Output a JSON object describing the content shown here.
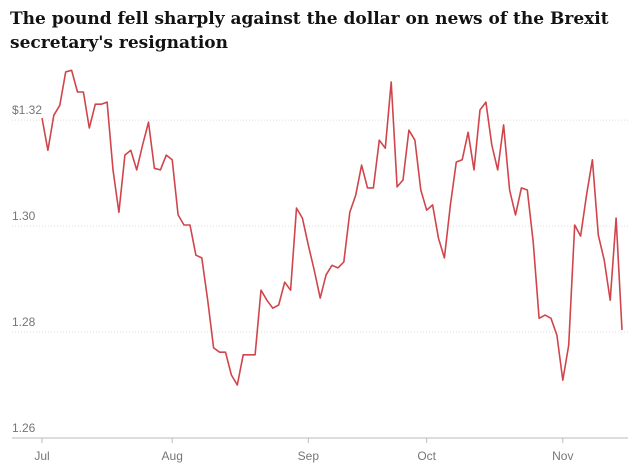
{
  "chart_data": {
    "type": "line",
    "title": [
      "The pound fell sharply against the dollar on news of the Brexit",
      "secretary's resignation"
    ],
    "categories": [
      "Jul",
      null,
      null,
      null,
      null,
      null,
      null,
      null,
      null,
      null,
      null,
      null,
      null,
      null,
      null,
      null,
      null,
      null,
      null,
      null,
      null,
      null,
      "Aug",
      null,
      null,
      null,
      null,
      null,
      null,
      null,
      null,
      null,
      null,
      null,
      null,
      null,
      null,
      null,
      null,
      null,
      null,
      null,
      null,
      null,
      null,
      "Sep",
      null,
      null,
      null,
      null,
      null,
      null,
      null,
      null,
      null,
      null,
      null,
      null,
      null,
      null,
      null,
      null,
      null,
      null,
      null,
      "Oct",
      null,
      null,
      null,
      null,
      null,
      null,
      null,
      null,
      null,
      null,
      null,
      null,
      null,
      null,
      null,
      null,
      null,
      null,
      null,
      null,
      null,
      null,
      "Nov",
      null,
      null,
      null,
      null,
      null,
      null,
      null,
      null,
      null,
      null
    ],
    "series": [
      {
        "color": "#d0454b",
        "values": [
          1.3204,
          1.3143,
          1.3209,
          1.3228,
          1.3291,
          1.3294,
          1.3253,
          1.3253,
          1.3185,
          1.323,
          1.323,
          1.3234,
          1.3106,
          1.3026,
          1.3134,
          1.3143,
          1.3106,
          1.3153,
          1.3196,
          1.3109,
          1.3106,
          1.3134,
          1.3125,
          1.3021,
          1.3002,
          1.3002,
          1.2945,
          1.294,
          1.286,
          1.277,
          1.2762,
          1.2762,
          1.2719,
          1.27,
          1.2757,
          1.2757,
          1.2757,
          1.2879,
          1.286,
          1.2845,
          1.2851,
          1.2894,
          1.2879,
          1.3034,
          1.3015,
          1.2964,
          1.2917,
          1.2864,
          1.2908,
          1.2926,
          1.2921,
          1.2932,
          1.3026,
          1.3058,
          1.3115,
          1.3072,
          1.3072,
          1.3162,
          1.3147,
          1.3272,
          1.3074,
          1.3087,
          1.3181,
          1.3162,
          1.3068,
          1.303,
          1.304,
          1.2977,
          1.294,
          1.304,
          1.3121,
          1.3125,
          1.3177,
          1.3106,
          1.3219,
          1.3234,
          1.3153,
          1.3106,
          1.3191,
          1.3068,
          1.3021,
          1.3072,
          1.3068,
          1.297,
          1.2826,
          1.2832,
          1.2826,
          1.2794,
          1.2709,
          1.2775,
          1.3002,
          1.2981,
          1.3058,
          1.3125,
          1.2983,
          1.2936,
          1.286,
          1.3015,
          1.2804
        ]
      }
    ],
    "ylim": [
      1.26,
      1.3304
    ],
    "yticks": [
      1.26,
      1.28,
      {
        "value": 1.3,
        "label": "1.30"
      },
      {
        "value": 1.32,
        "label": "$1.32"
      }
    ],
    "grid": true
  }
}
